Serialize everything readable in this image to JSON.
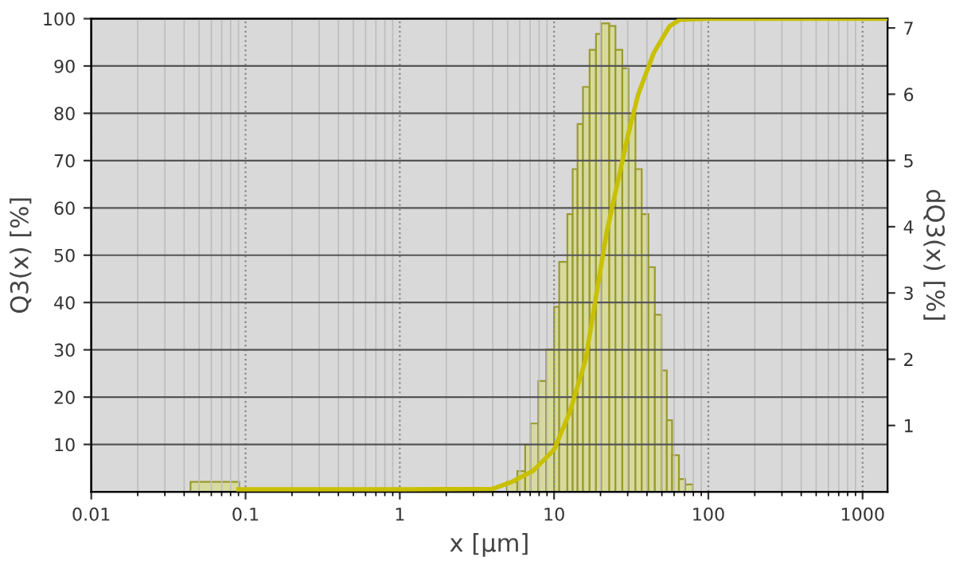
{
  "chart_data": {
    "type": "histogram",
    "xlabel": "x [µm]",
    "ylabel": "Q3(x) [%]",
    "y2label": "dQ3(x) [%]",
    "log": "x",
    "grid": true,
    "legend": false,
    "xlim": [
      0.01,
      1450
    ],
    "xticks": [
      0.01,
      0.1,
      1,
      10,
      100,
      1000
    ],
    "ylim": [
      0,
      100
    ],
    "yticks": [
      10,
      20,
      30,
      40,
      50,
      60,
      70,
      80,
      90,
      100
    ],
    "y2lim": [
      0,
      7.14
    ],
    "y2ticks": [
      1,
      2,
      3,
      4,
      5,
      6,
      7
    ],
    "series": [
      {
        "axis": "y2",
        "color": "#d6da9c",
        "bins": [
          0.044,
          0.091,
          4.94,
          5.78,
          6.5,
          7.03,
          7.9,
          8.9,
          10,
          10.8,
          12.2,
          13.2,
          14.2,
          15.4,
          17.0,
          18.7,
          20.2,
          22.8,
          25.0,
          27.7,
          30.4,
          33.7,
          37.0,
          40.9,
          45.0,
          49.8,
          53.8,
          58.2,
          64.5,
          70.8,
          79.6
        ],
        "values": [
          0.15,
          0,
          0.15,
          0.31,
          0.71,
          1.03,
          1.67,
          2.15,
          2.79,
          3.47,
          4.19,
          4.87,
          5.55,
          6.11,
          6.67,
          6.91,
          7.07,
          7.03,
          6.67,
          6.39,
          5.71,
          4.87,
          4.19,
          3.39,
          2.67,
          1.83,
          1.08,
          0.55,
          0.19,
          0.11
        ]
      },
      {
        "type": "line",
        "axis": "y",
        "color": "#c8c000",
        "x": [
          0.09,
          1,
          4,
          5.34,
          7.3,
          10,
          12.6,
          16.0,
          18.7,
          21.9,
          25.6,
          29.9,
          35.0,
          44.3,
          56,
          65.5,
          100,
          1450
        ],
        "values": [
          0.5,
          0.5,
          0.6,
          2.1,
          4.4,
          8.9,
          16.7,
          27.9,
          41.3,
          54.8,
          64.8,
          74.9,
          83.9,
          92.8,
          98.4,
          99.8,
          100,
          100
        ]
      }
    ]
  }
}
